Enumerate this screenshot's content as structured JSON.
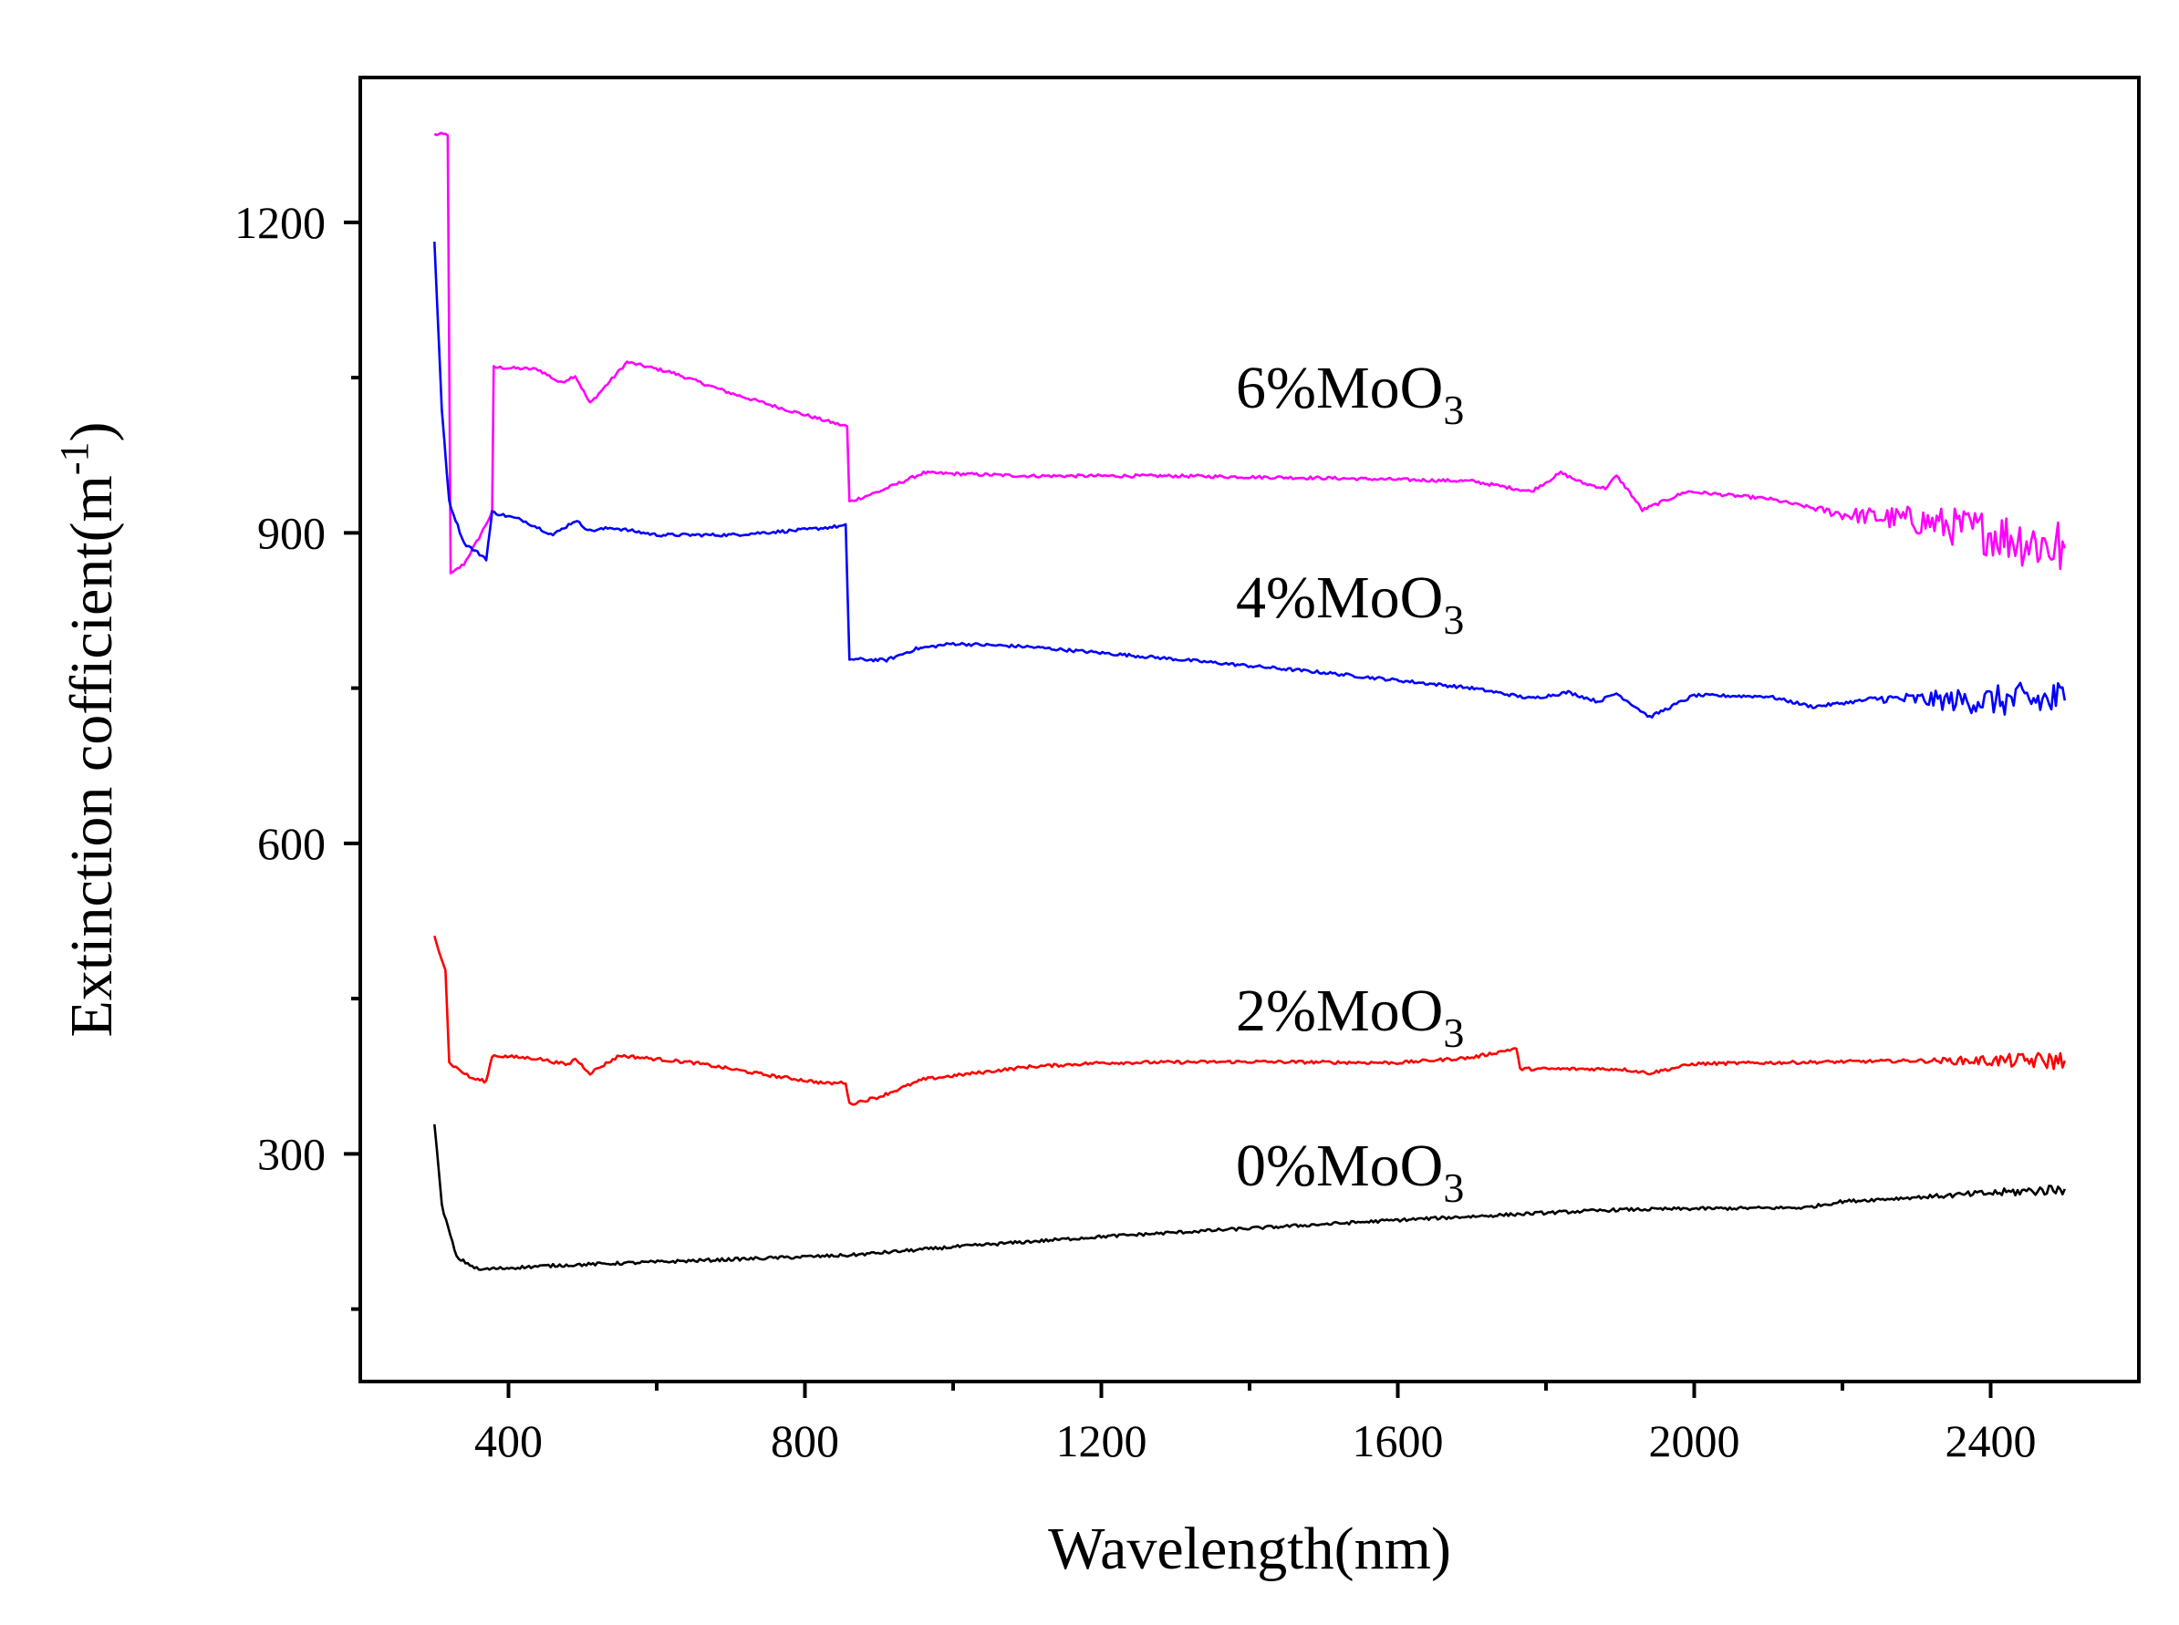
{
  "chart_data": {
    "type": "line",
    "title": "",
    "xlabel": "Wavelength(nm)",
    "ylabel": {
      "main": "Extinction cofficient(m",
      "sup": "-1",
      "close": ")"
    },
    "xlim": [
      200,
      2600
    ],
    "ylim": [
      80,
      1340
    ],
    "xticks": [
      400,
      800,
      1200,
      1600,
      2000,
      2400
    ],
    "xtick_labels": [
      "400",
      "800",
      "1200",
      "1600",
      "2000",
      "2400"
    ],
    "yticks": [
      300,
      600,
      900,
      1200
    ],
    "ytick_labels": [
      "300",
      "600",
      "900",
      "1200"
    ],
    "grid": false,
    "series": [
      {
        "name": "6%MoO3",
        "label": {
          "base": "6%MoO",
          "sub": "3"
        },
        "color": "#ff00ff",
        "noise_start": 2150,
        "noise_amp": 30,
        "points": [
          [
            300,
            1285
          ],
          [
            318,
            1285
          ],
          [
            322,
            860
          ],
          [
            340,
            870
          ],
          [
            360,
            895
          ],
          [
            378,
            920
          ],
          [
            380,
            1060
          ],
          [
            440,
            1058
          ],
          [
            470,
            1045
          ],
          [
            490,
            1052
          ],
          [
            510,
            1025
          ],
          [
            560,
            1065
          ],
          [
            620,
            1055
          ],
          [
            700,
            1035
          ],
          [
            780,
            1018
          ],
          [
            850,
            1004
          ],
          [
            857,
            1003
          ],
          [
            860,
            930
          ],
          [
            900,
            940
          ],
          [
            960,
            958
          ],
          [
            1100,
            955
          ],
          [
            1300,
            955
          ],
          [
            1500,
            953
          ],
          [
            1700,
            950
          ],
          [
            1780,
            940
          ],
          [
            1820,
            958
          ],
          [
            1850,
            948
          ],
          [
            1880,
            943
          ],
          [
            1895,
            955
          ],
          [
            1910,
            942
          ],
          [
            1930,
            922
          ],
          [
            1990,
            940
          ],
          [
            2100,
            933
          ],
          [
            2200,
            918
          ],
          [
            2300,
            912
          ],
          [
            2400,
            900
          ],
          [
            2500,
            885
          ]
        ]
      },
      {
        "name": "4%MoO3",
        "label": {
          "base": "4%MoO",
          "sub": "3"
        },
        "color": "#0000ff",
        "noise_start": 2220,
        "noise_amp": 20,
        "points": [
          [
            300,
            1180
          ],
          [
            310,
            1020
          ],
          [
            320,
            930
          ],
          [
            340,
            890
          ],
          [
            370,
            875
          ],
          [
            378,
            920
          ],
          [
            420,
            912
          ],
          [
            460,
            898
          ],
          [
            490,
            912
          ],
          [
            510,
            902
          ],
          [
            540,
            905
          ],
          [
            600,
            898
          ],
          [
            700,
            898
          ],
          [
            800,
            903
          ],
          [
            855,
            907
          ],
          [
            860,
            778
          ],
          [
            910,
            777
          ],
          [
            950,
            788
          ],
          [
            1000,
            793
          ],
          [
            1100,
            790
          ],
          [
            1300,
            778
          ],
          [
            1500,
            765
          ],
          [
            1700,
            750
          ],
          [
            1780,
            740
          ],
          [
            1830,
            746
          ],
          [
            1870,
            737
          ],
          [
            1895,
            745
          ],
          [
            1915,
            735
          ],
          [
            1940,
            722
          ],
          [
            2000,
            743
          ],
          [
            2100,
            742
          ],
          [
            2160,
            732
          ],
          [
            2250,
            740
          ],
          [
            2350,
            738
          ],
          [
            2500,
            738
          ]
        ]
      },
      {
        "name": "2%MoO3",
        "label": {
          "base": "2%MoO",
          "sub": "3"
        },
        "color": "#ff0000",
        "noise_start": 2300,
        "noise_amp": 8,
        "points": [
          [
            300,
            510
          ],
          [
            315,
            478
          ],
          [
            320,
            388
          ],
          [
            350,
            373
          ],
          [
            370,
            370
          ],
          [
            378,
            395
          ],
          [
            440,
            392
          ],
          [
            480,
            386
          ],
          [
            490,
            392
          ],
          [
            510,
            378
          ],
          [
            550,
            395
          ],
          [
            650,
            388
          ],
          [
            750,
            376
          ],
          [
            830,
            368
          ],
          [
            855,
            369
          ],
          [
            860,
            348
          ],
          [
            900,
            355
          ],
          [
            960,
            372
          ],
          [
            1100,
            384
          ],
          [
            1200,
            388
          ],
          [
            1400,
            389
          ],
          [
            1600,
            388
          ],
          [
            1700,
            393
          ],
          [
            1760,
            402
          ],
          [
            1765,
            382
          ],
          [
            1850,
            382
          ],
          [
            1900,
            382
          ],
          [
            1940,
            378
          ],
          [
            2000,
            387
          ],
          [
            2100,
            388
          ],
          [
            2300,
            390
          ],
          [
            2500,
            390
          ]
        ]
      },
      {
        "name": "0%MoO3",
        "label": {
          "base": "0%MoO",
          "sub": "3"
        },
        "color": "#000000",
        "noise_start": 2300,
        "noise_amp": 4,
        "points": [
          [
            300,
            330
          ],
          [
            310,
            250
          ],
          [
            330,
            200
          ],
          [
            360,
            188
          ],
          [
            380,
            189
          ],
          [
            460,
            192
          ],
          [
            700,
            198
          ],
          [
            860,
            202
          ],
          [
            1000,
            210
          ],
          [
            1200,
            220
          ],
          [
            1400,
            228
          ],
          [
            1600,
            236
          ],
          [
            1800,
            243
          ],
          [
            1900,
            246
          ],
          [
            2000,
            247
          ],
          [
            2150,
            248
          ],
          [
            2200,
            254
          ],
          [
            2300,
            258
          ],
          [
            2400,
            262
          ],
          [
            2500,
            266
          ]
        ]
      }
    ]
  }
}
